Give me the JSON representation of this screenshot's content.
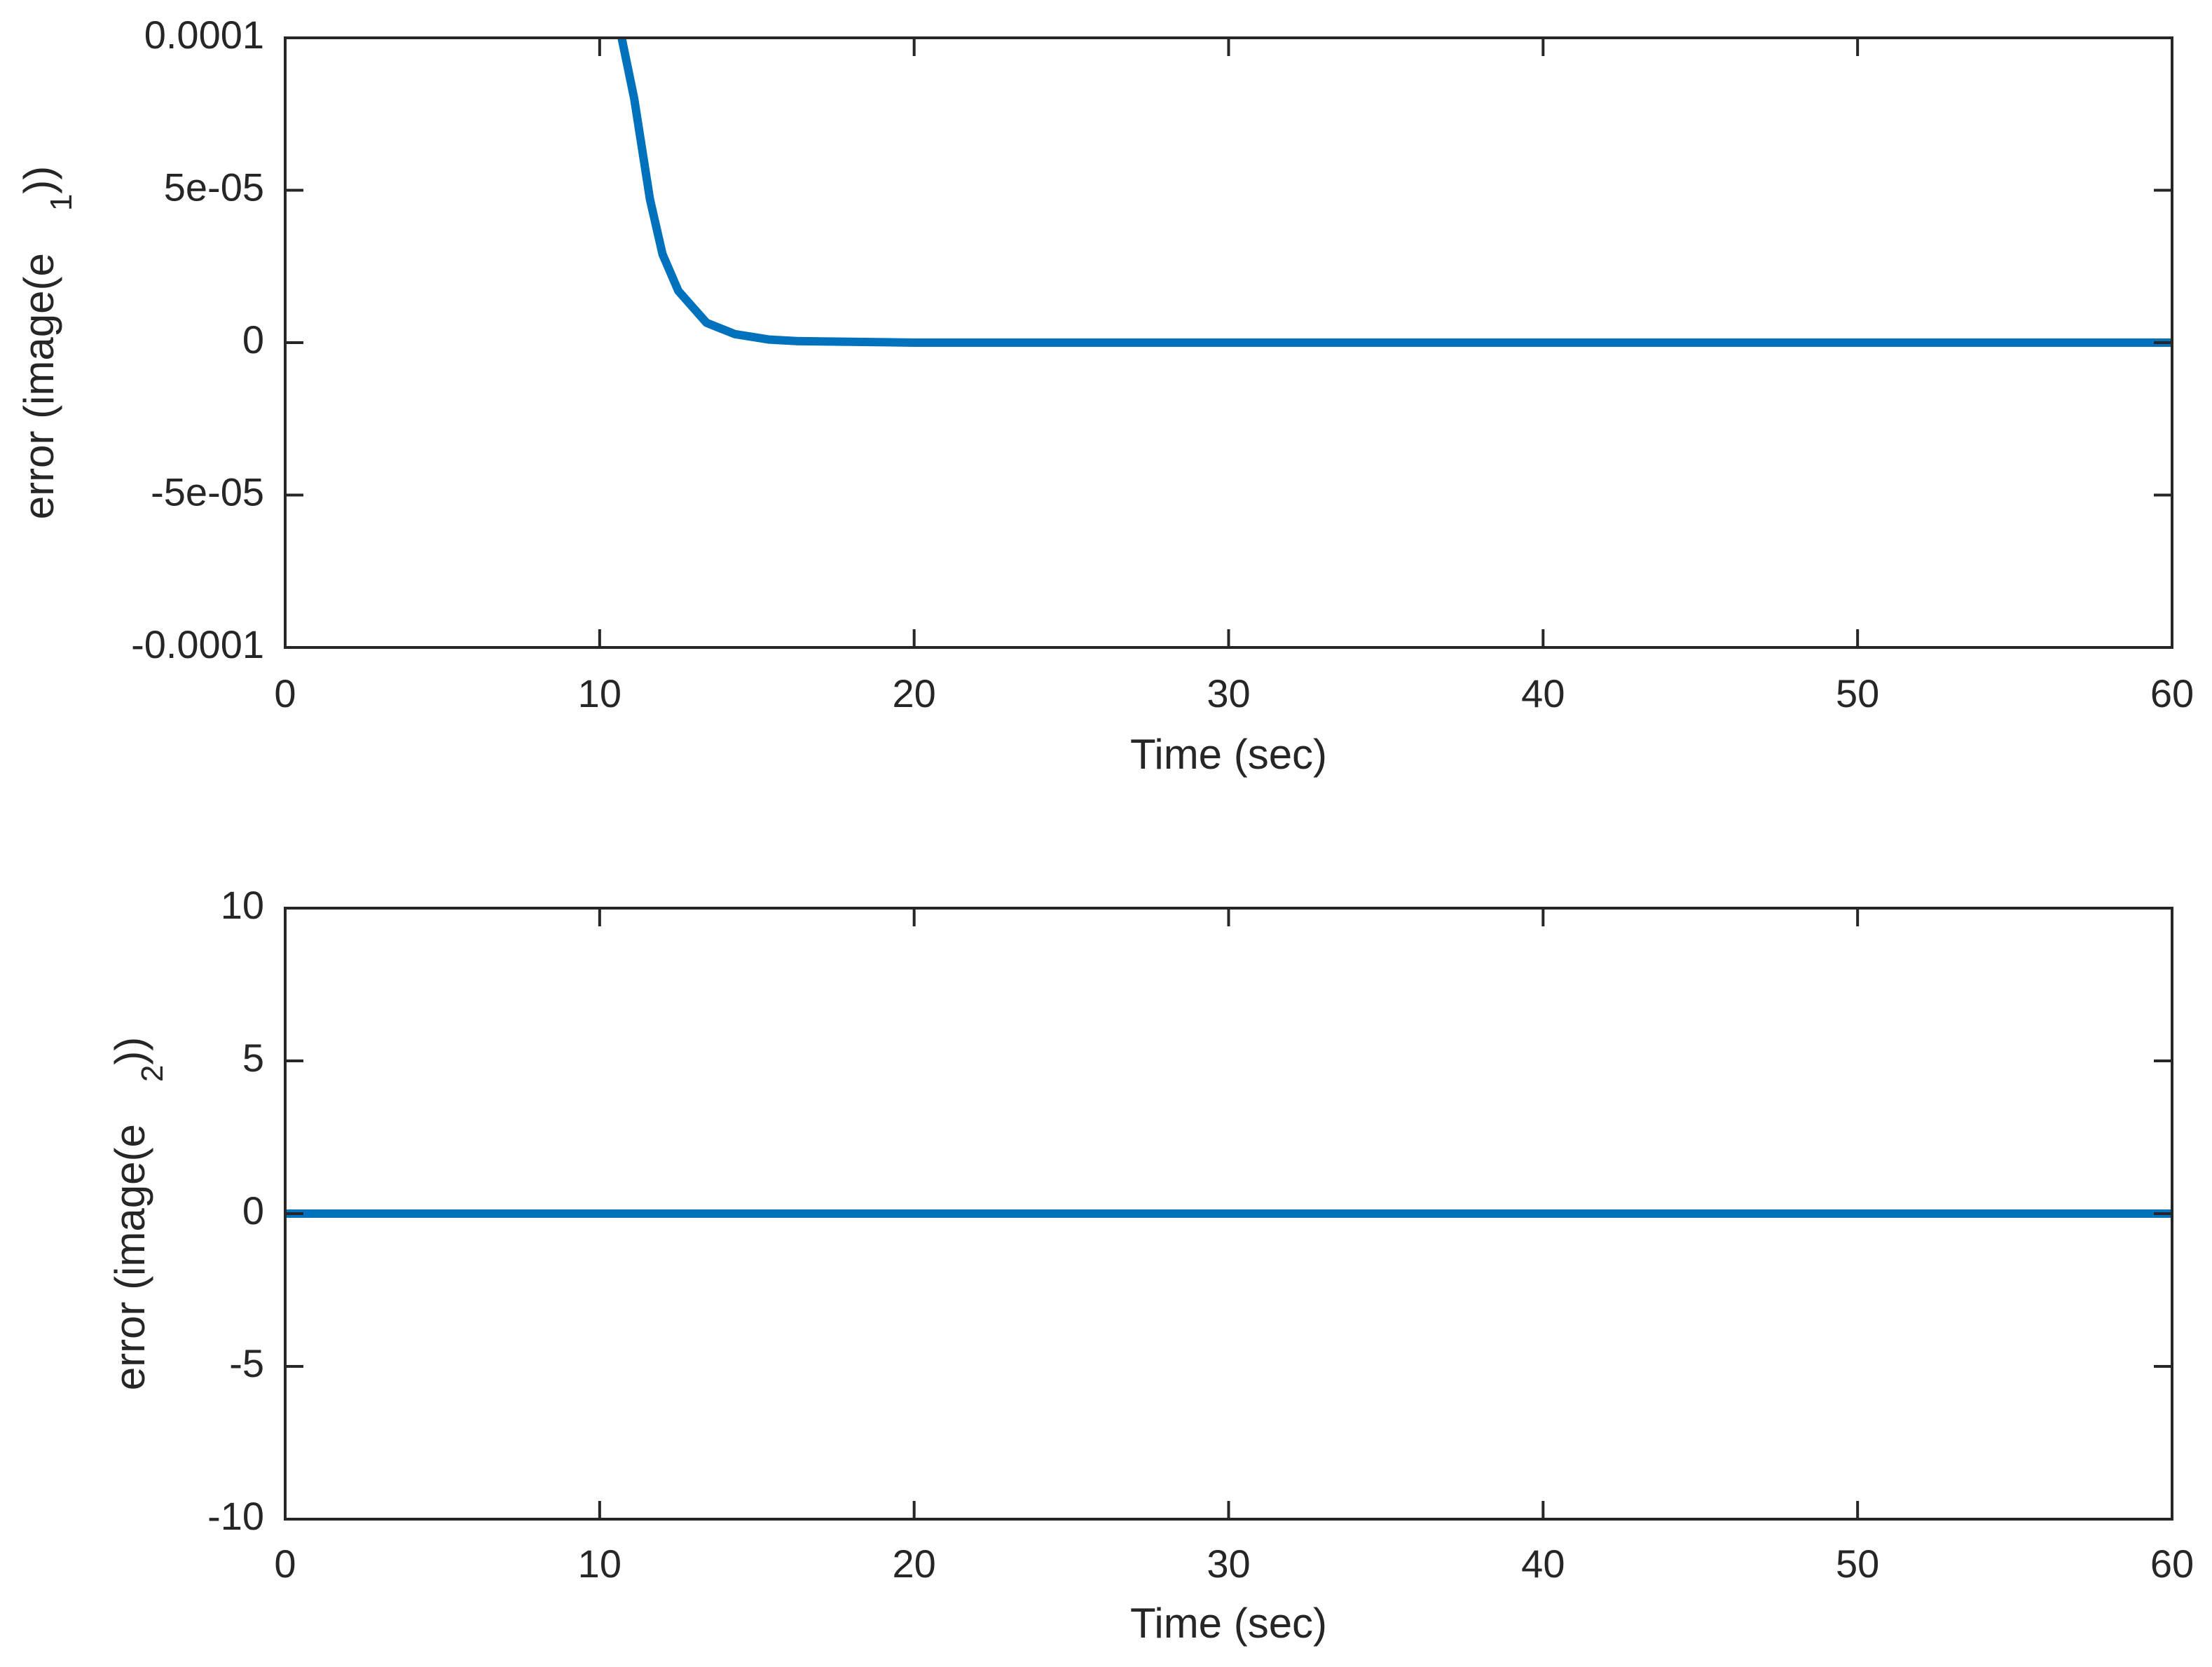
{
  "chart_data": [
    {
      "type": "line",
      "ylabel": "error (image(e",
      "ylabel_subscript": "1",
      "ylabel_suffix": "))",
      "xlabel": "Time (sec)",
      "x": [
        10.7,
        11.1,
        11.6,
        12.0,
        12.5,
        13.4,
        14.3,
        15.4,
        16.3,
        20,
        30,
        40,
        50,
        60
      ],
      "values": [
        0.0001,
        8e-05,
        4.7e-05,
        2.9e-05,
        1.7e-05,
        6.5e-06,
        2.8e-06,
        1e-06,
        5e-07,
        0,
        0,
        0,
        0,
        0
      ],
      "color": "#0072bd",
      "xlim": [
        0,
        60
      ],
      "xticks": [
        0,
        10,
        20,
        30,
        40,
        50,
        60
      ],
      "ylim": [
        -0.0001,
        0.0001
      ],
      "yticks": [
        {
          "value": -0.0001,
          "label": "-0.0001"
        },
        {
          "value": -5e-05,
          "label": "-5e-05"
        },
        0,
        {
          "value": 5e-05,
          "label": "5e-05"
        },
        {
          "value": 0.0001,
          "label": "0.0001"
        }
      ]
    },
    {
      "type": "line",
      "ylabel": "error (image(e",
      "ylabel_subscript": "2",
      "ylabel_suffix": "))",
      "xlabel": "Time (sec)",
      "x": [
        0,
        60
      ],
      "values": [
        0,
        0
      ],
      "color": "#0072bd",
      "xlim": [
        0,
        60
      ],
      "xticks": [
        0,
        10,
        20,
        30,
        40,
        50,
        60
      ],
      "ylim": [
        -10,
        10
      ],
      "yticks": [
        -10,
        -5,
        0,
        5,
        10
      ]
    }
  ]
}
